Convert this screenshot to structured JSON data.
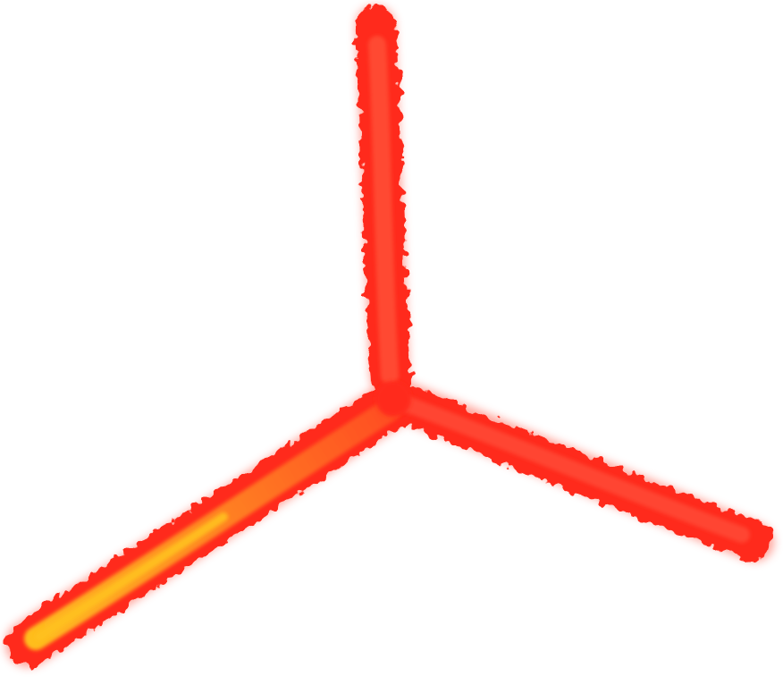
{
  "colors": {
    "background": "#ffffff",
    "outer_red": "#ff2a1a",
    "mid_red": "#f53b2a",
    "inner_orange": "#ff7a26",
    "core_yellow": "#ffb21e"
  },
  "icons": {
    "shape": "three-armed-glowing-tube"
  }
}
